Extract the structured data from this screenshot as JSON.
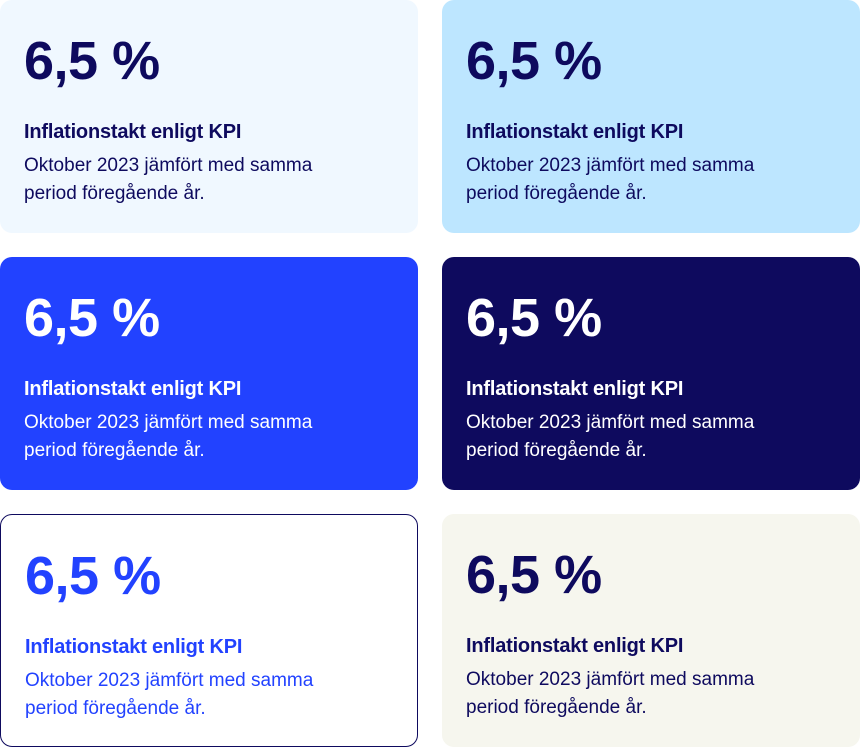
{
  "cards": [
    {
      "value": "6,5 %",
      "label": "Inflationstakt enligt KPI",
      "description": "Oktober 2023 jämfört med samma period föregående år.",
      "background": "#F0F8FF",
      "text_color": "#0E0A5E",
      "border": "none"
    },
    {
      "value": "6,5 %",
      "label": "Inflationstakt enligt KPI",
      "description": "Oktober 2023 jämfört med samma period föregående år.",
      "background": "#BDE6FF",
      "text_color": "#0E0A5E",
      "border": "none"
    },
    {
      "value": "6,5 %",
      "label": "Inflationstakt enligt KPI",
      "description": "Oktober 2023 jämfört med samma period föregående år.",
      "background": "#2242FF",
      "text_color": "#FFFFFF",
      "border": "none"
    },
    {
      "value": "6,5 %",
      "label": "Inflationstakt enligt KPI",
      "description": "Oktober 2023 jämfört med samma period föregående år.",
      "background": "#0E0A5E",
      "text_color": "#FFFFFF",
      "border": "none"
    },
    {
      "value": "6,5 %",
      "label": "Inflationstakt enligt KPI",
      "description": "Oktober 2023 jämfört med samma period föregående år.",
      "background": "#FFFFFF",
      "text_color": "#2242FF",
      "border": "#0E0A5E"
    },
    {
      "value": "6,5 %",
      "label": "Inflationstakt enligt KPI",
      "description": "Oktober 2023 jämfört med samma period föregående år.",
      "background": "#F6F6EE",
      "text_color": "#0E0A5E",
      "border": "none"
    }
  ]
}
